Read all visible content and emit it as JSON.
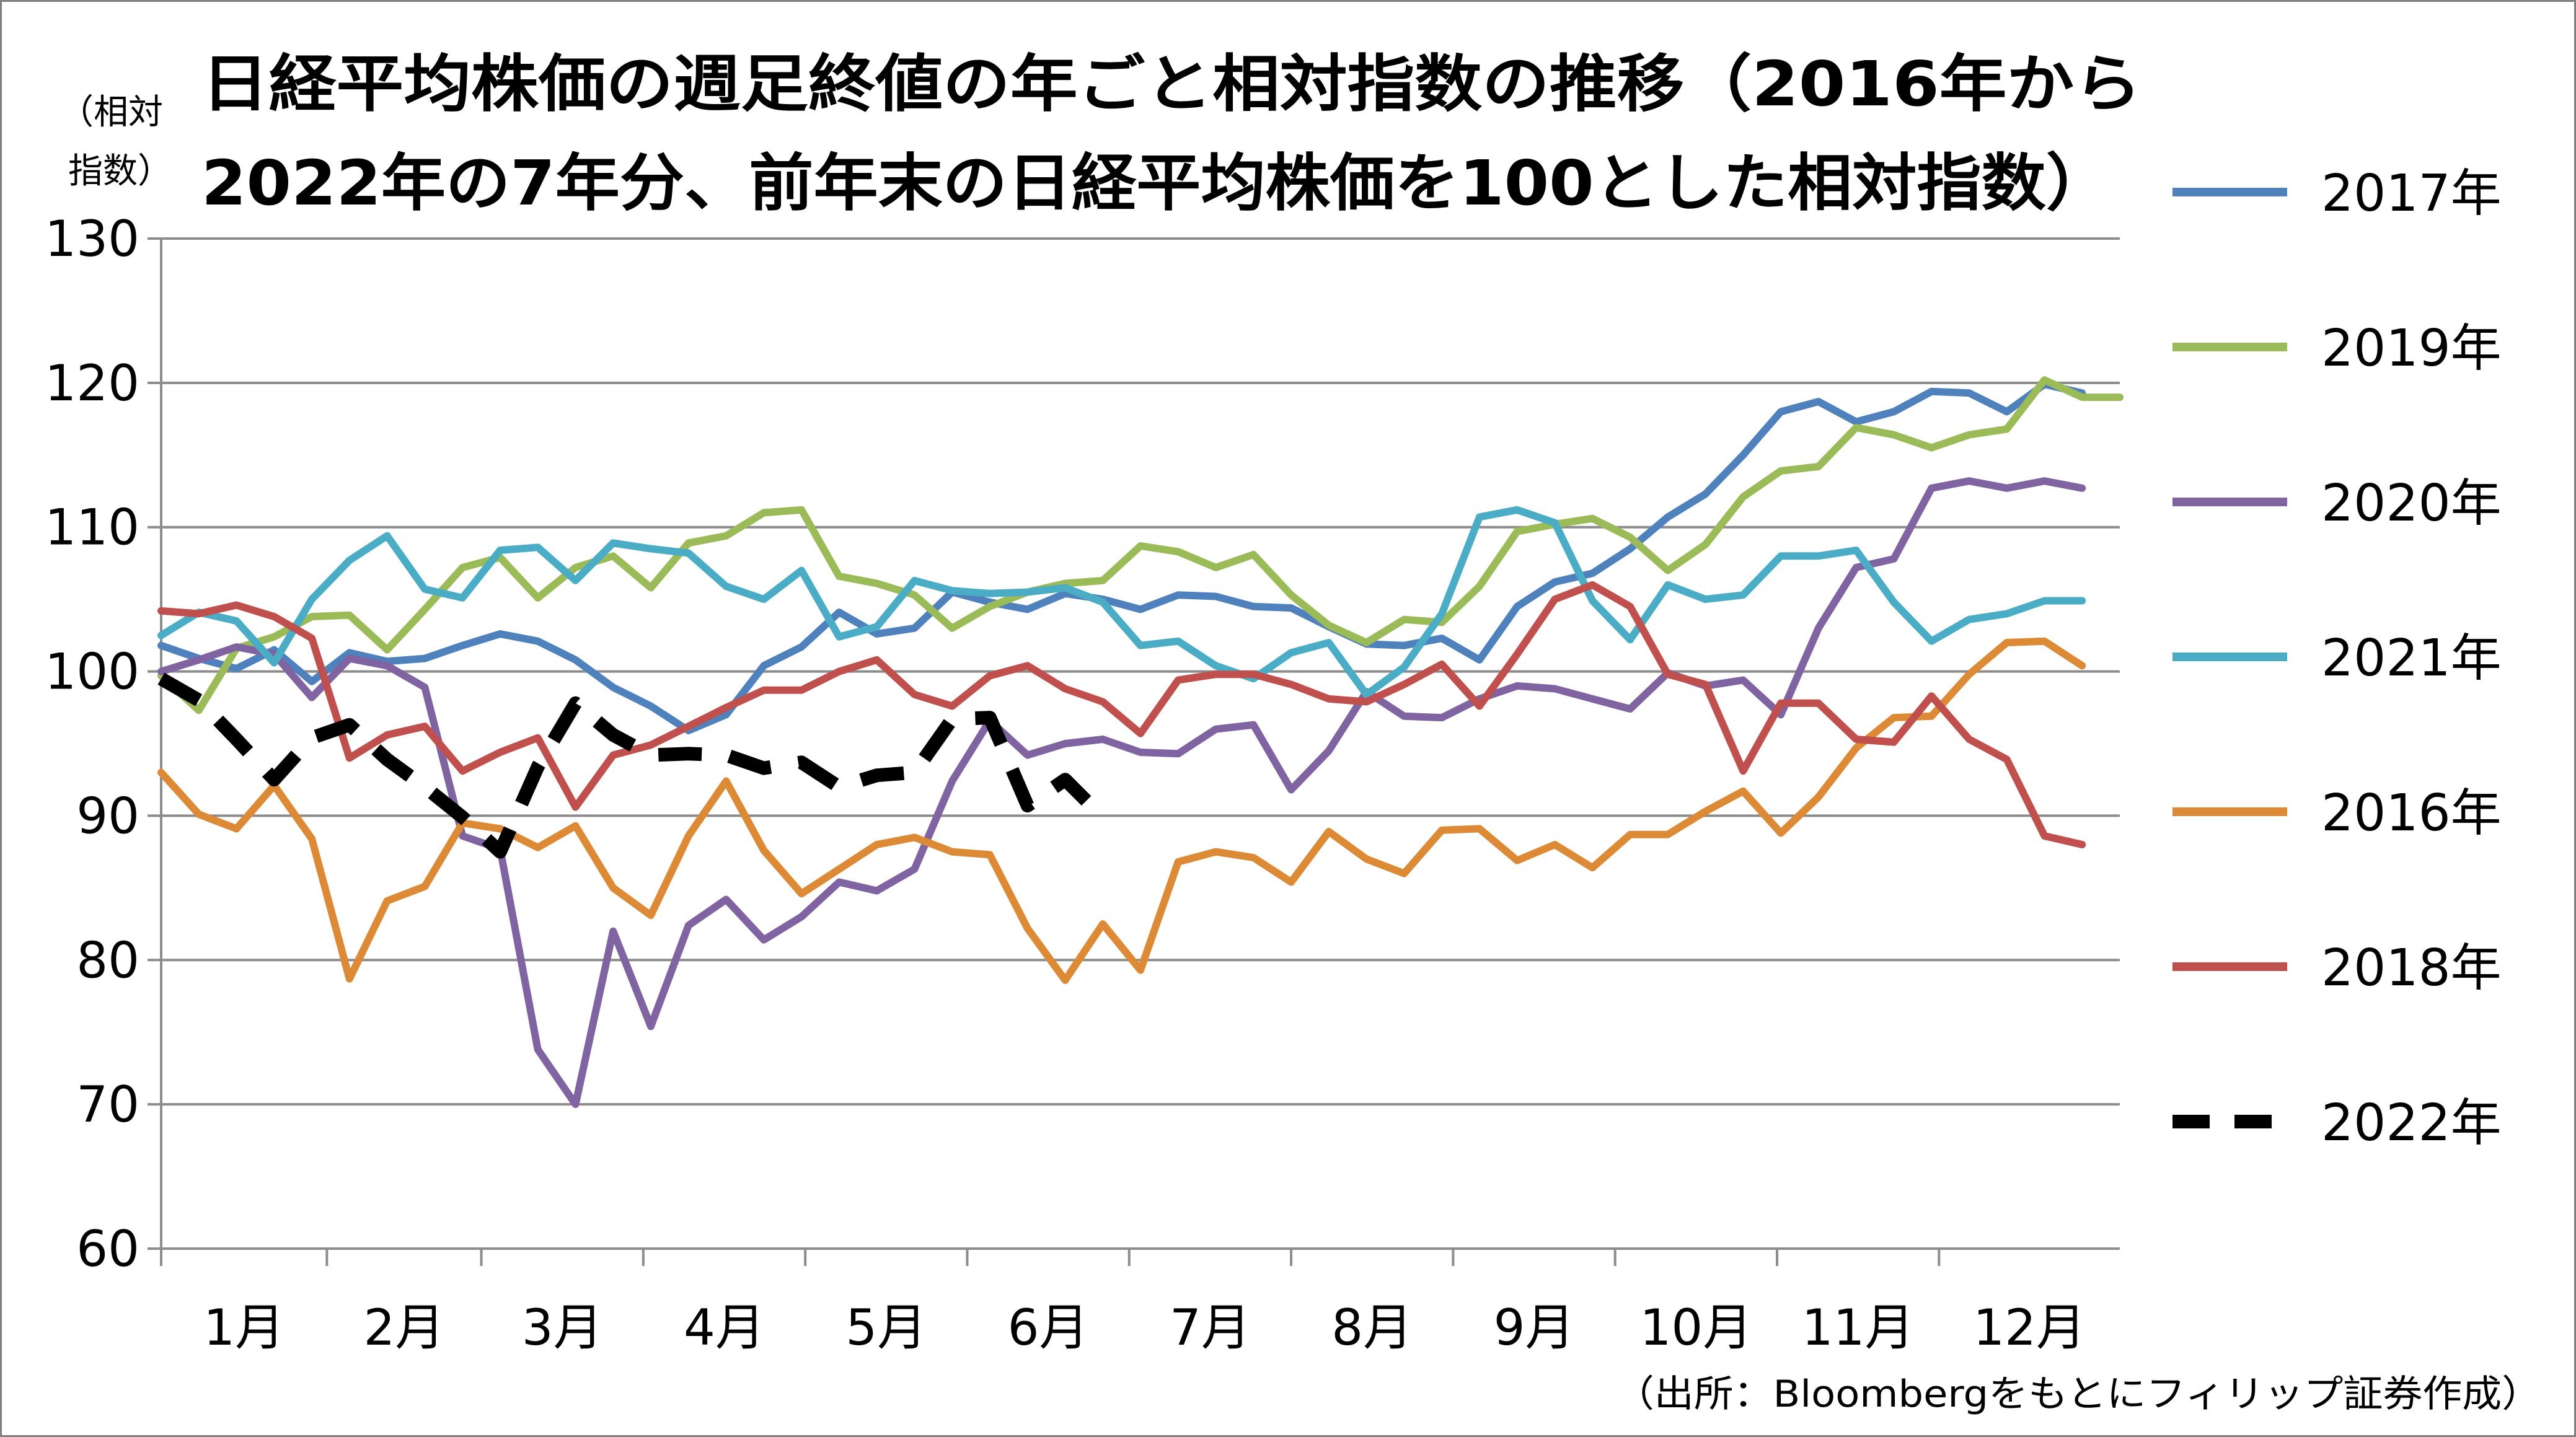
{
  "chart_data": {
    "type": "line",
    "title_lines": [
      "日経平均株価の週足終値の年ごと相対指数の推移（2016年から",
      "2022年の7年分、前年末の日経平均株価を100とした相対指数）"
    ],
    "ylabel_lines": [
      "（相対",
      "指数）"
    ],
    "source": "（出所：Bloombergをもとにフィリップ証券作成）",
    "ylim": [
      60,
      130
    ],
    "yticks": [
      60,
      70,
      80,
      90,
      100,
      110,
      120,
      130
    ],
    "xlim": [
      1,
      53
    ],
    "x_tick_labels": [
      "1月",
      "2月",
      "3月",
      "4月",
      "5月",
      "6月",
      "7月",
      "8月",
      "9月",
      "10月",
      "11月",
      "12月"
    ],
    "grid": true,
    "legend_position": "right",
    "series": [
      {
        "name": "2017年",
        "color": "#4f81bd",
        "dashed": false,
        "values": [
          101.8,
          100.9,
          100.2,
          101.5,
          99.3,
          101.3,
          100.7,
          100.9,
          101.8,
          102.6,
          102.1,
          100.8,
          98.9,
          97.6,
          95.9,
          97.0,
          100.4,
          101.7,
          104.1,
          102.6,
          103.0,
          105.5,
          104.8,
          104.3,
          105.4,
          105.0,
          104.3,
          105.3,
          105.2,
          104.5,
          104.4,
          103.1,
          101.9,
          101.8,
          102.3,
          100.8,
          104.5,
          106.2,
          106.8,
          108.5,
          110.7,
          112.3,
          115.0,
          118.0,
          118.7,
          117.3,
          118.0,
          119.4,
          119.3,
          118.0,
          119.9,
          119.3
        ]
      },
      {
        "name": "2019年",
        "color": "#9bbb59",
        "dashed": false,
        "values": [
          99.7,
          97.3,
          101.6,
          102.4,
          103.8,
          103.9,
          101.5,
          104.3,
          107.2,
          107.9,
          105.1,
          107.2,
          108.0,
          105.8,
          108.9,
          109.4,
          111.0,
          111.2,
          106.6,
          106.1,
          105.3,
          103.0,
          104.5,
          105.5,
          106.1,
          106.3,
          108.7,
          108.3,
          107.2,
          108.1,
          105.3,
          103.2,
          102.0,
          103.6,
          103.4,
          105.9,
          109.7,
          110.2,
          110.6,
          109.3,
          107.0,
          108.8,
          112.1,
          113.9,
          114.2,
          116.9,
          116.4,
          115.5,
          116.4,
          116.8,
          120.2,
          119.0,
          119.0
        ]
      },
      {
        "name": "2020年",
        "color": "#8064a2",
        "dashed": false,
        "values": [
          100.0,
          100.8,
          101.7,
          101.2,
          98.2,
          100.9,
          100.4,
          98.9,
          88.6,
          87.7,
          73.8,
          70.0,
          82.0,
          75.4,
          82.4,
          84.2,
          81.4,
          83.0,
          85.4,
          84.8,
          86.3,
          92.4,
          96.6,
          94.2,
          95.0,
          95.3,
          94.4,
          94.3,
          96.0,
          96.3,
          91.8,
          94.5,
          98.6,
          96.9,
          96.8,
          98.1,
          99.0,
          98.8,
          98.1,
          97.4,
          99.9,
          99.0,
          99.4,
          97.0,
          103.0,
          107.2,
          107.8,
          112.7,
          113.2,
          112.7,
          113.2,
          112.7
        ]
      },
      {
        "name": "2021年",
        "color": "#4bacc6",
        "dashed": false,
        "values": [
          102.5,
          104.1,
          103.5,
          100.6,
          105.0,
          107.7,
          109.4,
          105.7,
          105.1,
          108.4,
          108.6,
          106.3,
          108.9,
          108.5,
          108.2,
          105.9,
          105.0,
          107.0,
          102.4,
          103.1,
          106.3,
          105.6,
          105.4,
          105.5,
          105.8,
          104.8,
          101.8,
          102.1,
          100.4,
          99.5,
          101.3,
          102.0,
          98.4,
          100.3,
          104.0,
          110.7,
          111.2,
          110.3,
          104.9,
          102.2,
          106.0,
          105.0,
          105.3,
          108.0,
          108.0,
          108.4,
          104.8,
          102.1,
          103.6,
          104.0,
          104.9,
          104.9
        ]
      },
      {
        "name": "2016年",
        "color": "#dc8a35",
        "dashed": false,
        "values": [
          93.0,
          90.1,
          89.1,
          92.1,
          88.4,
          78.7,
          84.1,
          85.1,
          89.5,
          89.1,
          87.8,
          89.3,
          85.0,
          83.1,
          88.6,
          92.4,
          87.6,
          84.6,
          86.3,
          88.0,
          88.5,
          87.5,
          87.3,
          82.2,
          78.6,
          82.5,
          79.3,
          86.8,
          87.5,
          87.1,
          85.4,
          88.9,
          87.0,
          86.0,
          89.0,
          89.1,
          86.9,
          88.0,
          86.4,
          88.7,
          88.7,
          90.3,
          91.7,
          88.8,
          91.3,
          94.7,
          96.8,
          96.9,
          99.8,
          102.0,
          102.1,
          100.4
        ]
      },
      {
        "name": "2018年",
        "color": "#c0504d",
        "dashed": false,
        "values": [
          104.2,
          104.0,
          104.6,
          103.8,
          102.3,
          94.0,
          95.6,
          96.2,
          93.1,
          94.4,
          95.4,
          90.6,
          94.2,
          94.9,
          96.2,
          97.5,
          98.7,
          98.7,
          100.0,
          100.8,
          98.4,
          97.6,
          99.7,
          100.4,
          98.8,
          97.9,
          95.7,
          99.4,
          99.8,
          99.8,
          99.1,
          98.1,
          97.9,
          99.1,
          100.5,
          97.6,
          101.2,
          105.0,
          106.0,
          104.5,
          99.8,
          99.1,
          93.1,
          97.8,
          97.8,
          95.3,
          95.1,
          98.3,
          95.3,
          93.9,
          88.6,
          88.0
        ]
      },
      {
        "name": "2022年",
        "color": "#000000",
        "dashed": true,
        "values": [
          99.5,
          98.0,
          95.3,
          92.5,
          95.4,
          96.3,
          93.9,
          92.0,
          89.9,
          87.5,
          93.4,
          97.8,
          95.6,
          94.2,
          94.3,
          94.2,
          93.3,
          93.7,
          92.0,
          92.8,
          93.0,
          96.7,
          96.8,
          90.7,
          92.5,
          89.9
        ]
      }
    ]
  }
}
